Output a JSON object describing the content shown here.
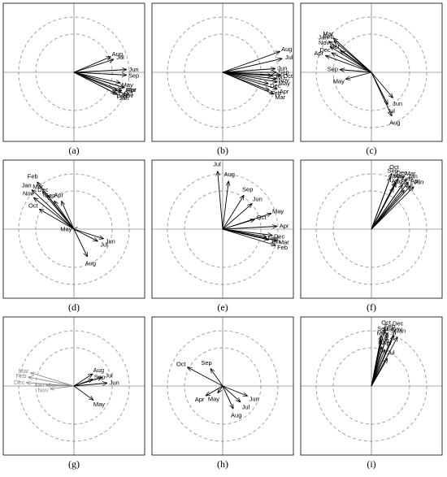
{
  "chart_data": [
    {
      "panel": "(a)",
      "type": "vector-rose",
      "months": [
        {
          "label": "Aug",
          "angle_deg": 23,
          "length": 0.72
        },
        {
          "label": "Jul",
          "angle_deg": 18,
          "length": 0.75
        },
        {
          "label": "Jun",
          "angle_deg": 3,
          "length": 0.95
        },
        {
          "label": "Sep",
          "angle_deg": -3,
          "length": 0.95
        },
        {
          "label": "May",
          "angle_deg": -13,
          "length": 0.86
        },
        {
          "label": "Apr",
          "angle_deg": -17,
          "length": 0.95
        },
        {
          "label": "Mar",
          "angle_deg": -17,
          "length": 0.95
        },
        {
          "label": "Oct",
          "angle_deg": -21,
          "length": 0.92
        },
        {
          "label": "Nov",
          "angle_deg": -23,
          "length": 0.93
        },
        {
          "label": "Dec",
          "angle_deg": -23,
          "length": 0.85
        },
        {
          "label": "Jan",
          "angle_deg": -27,
          "length": 0.88
        },
        {
          "label": "Feb",
          "angle_deg": -27,
          "length": 0.84
        }
      ]
    },
    {
      "panel": "(b)",
      "type": "vector-rose",
      "months": [
        {
          "label": "Aug",
          "angle_deg": 20,
          "length": 1.1
        },
        {
          "label": "Jul",
          "angle_deg": 13,
          "length": 1.1
        },
        {
          "label": "Jun",
          "angle_deg": 4,
          "length": 0.95
        },
        {
          "label": "Sep",
          "angle_deg": 0,
          "length": 0.97
        },
        {
          "label": "Oct",
          "angle_deg": -3,
          "length": 1.05
        },
        {
          "label": "Jan",
          "angle_deg": -4,
          "length": 0.9
        },
        {
          "label": "Nov",
          "angle_deg": -7,
          "length": 0.98
        },
        {
          "label": "May",
          "angle_deg": -10,
          "length": 1.0
        },
        {
          "label": "Dec",
          "angle_deg": -14,
          "length": 0.85
        },
        {
          "label": "Apr",
          "angle_deg": -17,
          "length": 1.03
        },
        {
          "label": "Feb",
          "angle_deg": -21,
          "length": 0.9
        },
        {
          "label": "Mar",
          "angle_deg": -23,
          "length": 1.0
        }
      ]
    },
    {
      "panel": "(c)",
      "type": "vector-rose",
      "months": [
        {
          "label": "Mar",
          "angle_deg": 138,
          "length": 0.92
        },
        {
          "label": "Feb",
          "angle_deg": 140,
          "length": 0.88
        },
        {
          "label": "Jan",
          "angle_deg": 144,
          "length": 0.95
        },
        {
          "label": "Nov",
          "angle_deg": 148,
          "length": 0.88
        },
        {
          "label": "Oct",
          "angle_deg": 145,
          "length": 0.68
        },
        {
          "label": "Dec",
          "angle_deg": 154,
          "length": 0.8
        },
        {
          "label": "Apr",
          "angle_deg": 160,
          "length": 0.88
        },
        {
          "label": "Sep",
          "angle_deg": 175,
          "length": 0.57
        },
        {
          "label": "May",
          "angle_deg": 195,
          "length": 0.48
        },
        {
          "label": "Jun",
          "angle_deg": -50,
          "length": 0.6
        },
        {
          "label": "Jul",
          "angle_deg": -63,
          "length": 0.65
        },
        {
          "label": "Aug",
          "angle_deg": -65,
          "length": 0.87
        }
      ]
    },
    {
      "panel": "(d)",
      "type": "vector-rose",
      "months": [
        {
          "label": "Feb",
          "angle_deg": 128,
          "length": 1.08
        },
        {
          "label": "Mar",
          "angle_deg": 130,
          "length": 0.88
        },
        {
          "label": "Jan",
          "angle_deg": 137,
          "length": 1.04
        },
        {
          "label": "Dec",
          "angle_deg": 128,
          "length": 0.78
        },
        {
          "label": "Nov",
          "angle_deg": 142,
          "length": 0.92
        },
        {
          "label": "Sep",
          "angle_deg": 125,
          "length": 0.62
        },
        {
          "label": "Apr",
          "angle_deg": 114,
          "length": 0.55
        },
        {
          "label": "Oct",
          "angle_deg": 150,
          "length": 0.72
        },
        {
          "label": "May",
          "angle_deg": 180,
          "length": 0.01
        },
        {
          "label": "Jun",
          "angle_deg": -18,
          "length": 0.56
        },
        {
          "label": "Jul",
          "angle_deg": -27,
          "length": 0.48
        },
        {
          "label": "Aug",
          "angle_deg": -64,
          "length": 0.55
        }
      ]
    },
    {
      "panel": "(e)",
      "type": "vector-rose",
      "months": [
        {
          "label": "Jul",
          "angle_deg": 95,
          "length": 1.05
        },
        {
          "label": "Aug",
          "angle_deg": 83,
          "length": 0.87
        },
        {
          "label": "Sep",
          "angle_deg": 58,
          "length": 0.72
        },
        {
          "label": "Jun",
          "angle_deg": 41,
          "length": 0.7
        },
        {
          "label": "May",
          "angle_deg": 18,
          "length": 0.92
        },
        {
          "label": "Oct",
          "angle_deg": 17,
          "length": 0.6
        },
        {
          "label": "Apr",
          "angle_deg": 3,
          "length": 0.98
        },
        {
          "label": "Dec",
          "angle_deg": -7,
          "length": 0.9
        },
        {
          "label": "Nov",
          "angle_deg": -10,
          "length": 0.8
        },
        {
          "label": "Jan",
          "angle_deg": -13,
          "length": 0.85
        },
        {
          "label": "Mar",
          "angle_deg": -12,
          "length": 1.0
        },
        {
          "label": "Feb",
          "angle_deg": -17,
          "length": 1.0
        }
      ]
    },
    {
      "panel": "(f)",
      "type": "vector-rose",
      "months": [
        {
          "label": "Oct",
          "angle_deg": 70,
          "length": 1.07
        },
        {
          "label": "Dec",
          "angle_deg": 62,
          "length": 1.03
        },
        {
          "label": "Sep",
          "angle_deg": 70,
          "length": 1.0
        },
        {
          "label": "Mar",
          "angle_deg": 55,
          "length": 1.1
        },
        {
          "label": "May",
          "angle_deg": 63,
          "length": 0.95
        },
        {
          "label": "Jan",
          "angle_deg": 52,
          "length": 1.08
        },
        {
          "label": "Nov",
          "angle_deg": 62,
          "length": 0.95
        },
        {
          "label": "Apr",
          "angle_deg": 48,
          "length": 1.05
        },
        {
          "label": "Feb",
          "angle_deg": 55,
          "length": 0.98
        },
        {
          "label": "Jun",
          "angle_deg": 45,
          "length": 1.08
        },
        {
          "label": "Aug",
          "angle_deg": 62,
          "length": 0.85
        },
        {
          "label": "Jul",
          "angle_deg": 50,
          "length": 0.92
        }
      ]
    },
    {
      "panel": "(g)",
      "type": "vector-rose",
      "months": [
        {
          "label": "Mar",
          "angle_deg": 163,
          "length": 0.82,
          "grey": true
        },
        {
          "label": "Feb",
          "angle_deg": 169,
          "length": 0.84,
          "grey": true
        },
        {
          "label": "Dec",
          "angle_deg": 176,
          "length": 0.86,
          "grey": true
        },
        {
          "label": "Jan",
          "angle_deg": 178,
          "length": 0.5,
          "grey": true
        },
        {
          "label": "Nov",
          "angle_deg": 187,
          "length": 0.43,
          "grey": true
        },
        {
          "label": "Aug",
          "angle_deg": 33,
          "length": 0.4
        },
        {
          "label": "Sep",
          "angle_deg": 20,
          "length": 0.36
        },
        {
          "label": "Jul",
          "angle_deg": 17,
          "length": 0.53
        },
        {
          "label": "Jun",
          "angle_deg": 5,
          "length": 0.6
        },
        {
          "label": "May",
          "angle_deg": -36,
          "length": 0.43
        }
      ]
    },
    {
      "panel": "(h)",
      "type": "vector-rose",
      "months": [
        {
          "label": "Oct",
          "angle_deg": 152,
          "length": 0.72
        },
        {
          "label": "Sep",
          "angle_deg": 125,
          "length": 0.38
        },
        {
          "label": "Apr",
          "angle_deg": 210,
          "length": 0.35
        },
        {
          "label": "May",
          "angle_deg": 235,
          "length": 0.15
        },
        {
          "label": "Jun",
          "angle_deg": -22,
          "length": 0.48
        },
        {
          "label": "Jul",
          "angle_deg": -42,
          "length": 0.43
        },
        {
          "label": "Aug",
          "angle_deg": -65,
          "length": 0.45
        }
      ]
    },
    {
      "panel": "(i)",
      "type": "vector-rose",
      "months": [
        {
          "label": "Oct",
          "angle_deg": 77,
          "length": 1.05
        },
        {
          "label": "Dec",
          "angle_deg": 67,
          "length": 1.1
        },
        {
          "label": "Feb",
          "angle_deg": 73,
          "length": 1.0
        },
        {
          "label": "Sep",
          "angle_deg": 79,
          "length": 0.93
        },
        {
          "label": "Nov",
          "angle_deg": 66,
          "length": 1.0
        },
        {
          "label": "Mar",
          "angle_deg": 73,
          "length": 0.95
        },
        {
          "label": "Jan",
          "angle_deg": 62,
          "length": 1.0
        },
        {
          "label": "May",
          "angle_deg": 78,
          "length": 0.85
        },
        {
          "label": "Aug",
          "angle_deg": 75,
          "length": 0.73
        },
        {
          "label": "Apr",
          "angle_deg": 70,
          "length": 0.7
        },
        {
          "label": "Jul",
          "angle_deg": 60,
          "length": 0.57
        }
      ]
    }
  ],
  "style": {
    "arrow_color": "#000000",
    "grey_color": "#8c8c8c",
    "circle_color": "#999999",
    "axis_color": "#555555",
    "frame_color": "#000000"
  }
}
